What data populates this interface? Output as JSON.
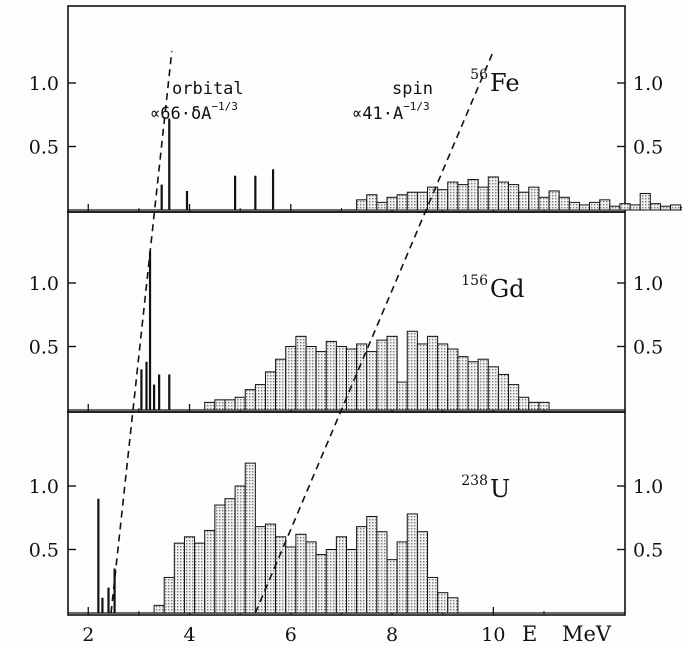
{
  "chart_data": {
    "type": "bar",
    "xlabel": "E",
    "xunit": "MeV",
    "xlim": [
      1.6,
      12.6
    ],
    "x_ticks": [
      "2",
      "4",
      "6",
      "8",
      "10"
    ],
    "y_ticks": [
      "0.5",
      "1.0"
    ],
    "ylim": [
      0,
      1.5
    ],
    "panels": [
      {
        "id": "fe56",
        "mass": "56",
        "symbol": "Fe",
        "lines": [
          [
            3.45,
            0.2
          ],
          [
            3.6,
            0.72
          ],
          [
            3.95,
            0.15
          ],
          [
            4.9,
            0.27
          ],
          [
            5.3,
            0.27
          ],
          [
            5.65,
            0.32
          ]
        ],
        "hist": {
          "start": 7.3,
          "step": 0.2,
          "values": [
            0.08,
            0.12,
            0.06,
            0.1,
            0.12,
            0.14,
            0.14,
            0.18,
            0.16,
            0.22,
            0.2,
            0.24,
            0.18,
            0.26,
            0.22,
            0.2,
            0.14,
            0.18,
            0.1,
            0.15,
            0.1,
            0.06,
            0.04,
            0.06,
            0.08,
            0.03,
            0.05,
            0.04,
            0.13,
            0.05,
            0.03,
            0.04,
            0.02,
            0.03,
            0.05,
            0.03
          ]
        }
      },
      {
        "id": "gd156",
        "mass": "156",
        "symbol": "Gd",
        "lines": [
          [
            3.05,
            0.32
          ],
          [
            3.15,
            0.38
          ],
          [
            3.22,
            1.25
          ],
          [
            3.3,
            0.2
          ],
          [
            3.4,
            0.28
          ],
          [
            3.6,
            0.28
          ]
        ],
        "hist": {
          "start": 4.3,
          "step": 0.2,
          "values": [
            0.06,
            0.08,
            0.08,
            0.1,
            0.16,
            0.2,
            0.3,
            0.4,
            0.5,
            0.58,
            0.5,
            0.46,
            0.54,
            0.5,
            0.48,
            0.52,
            0.46,
            0.55,
            0.58,
            0.22,
            0.62,
            0.52,
            0.58,
            0.52,
            0.48,
            0.42,
            0.38,
            0.4,
            0.34,
            0.28,
            0.2,
            0.1,
            0.06,
            0.06
          ]
        }
      },
      {
        "id": "u238",
        "mass": "238",
        "symbol": "U",
        "lines": [
          [
            2.2,
            0.9
          ],
          [
            2.28,
            0.12
          ],
          [
            2.4,
            0.2
          ],
          [
            2.52,
            0.35
          ]
        ],
        "hist": {
          "start": 3.3,
          "step": 0.2,
          "values": [
            0.06,
            0.28,
            0.55,
            0.6,
            0.55,
            0.65,
            0.85,
            0.9,
            1.0,
            1.18,
            0.68,
            0.7,
            0.6,
            0.52,
            0.62,
            0.56,
            0.46,
            0.5,
            0.6,
            0.5,
            0.68,
            0.76,
            0.64,
            0.42,
            0.56,
            0.78,
            0.64,
            0.28,
            0.16,
            0.12
          ]
        }
      }
    ],
    "annotations": {
      "orbital_title": "orbital",
      "orbital_formula": "∝66·δA",
      "spin_title": "spin",
      "spin_formula": "∝41·A",
      "exponent": "−1/3"
    },
    "dashed_lines": {
      "orbital": [
        [
          2.45,
          0,
          "u238"
        ],
        [
          3.65,
          1.25,
          "fe56"
        ]
      ],
      "spin": [
        [
          5.3,
          0,
          "u238"
        ],
        [
          10.0,
          1.25,
          "fe56"
        ]
      ]
    }
  }
}
